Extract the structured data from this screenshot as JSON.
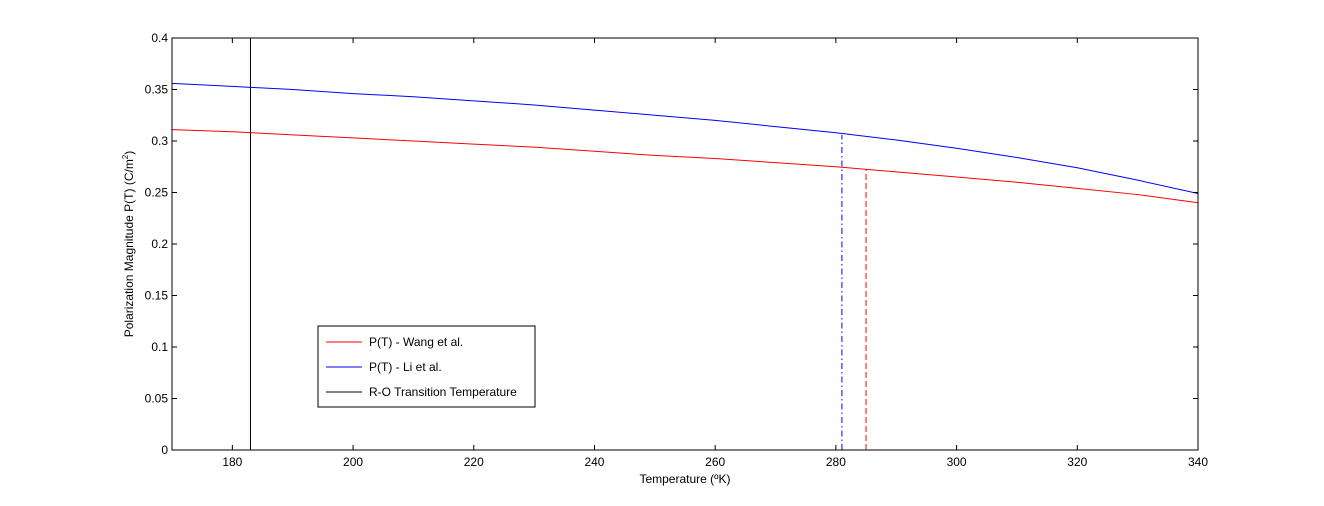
{
  "chart_data": {
    "type": "line",
    "title": "",
    "xlabel": "Temperature (ºK)",
    "ylabel": "Polarization Magnitude P(T)  (C/m²)",
    "ylabel_main": "Polarization Magnitude P(T)  (C/m",
    "ylabel_sup": "2",
    "ylabel_tail": ")",
    "xlim": [
      170,
      340
    ],
    "ylim": [
      0,
      0.4
    ],
    "xticks": [
      180,
      200,
      220,
      240,
      260,
      280,
      300,
      320,
      340
    ],
    "yticks": [
      0,
      0.05,
      0.1,
      0.15,
      0.2,
      0.25,
      0.3,
      0.35,
      0.4
    ],
    "xtick_labels": [
      "180",
      "200",
      "220",
      "240",
      "260",
      "280",
      "300",
      "320",
      "340"
    ],
    "ytick_labels": [
      "0",
      "0.05",
      "0.1",
      "0.15",
      "0.2",
      "0.25",
      "0.3",
      "0.35",
      "0.4"
    ],
    "grid": false,
    "legend_position": "lower-left",
    "series": [
      {
        "name": "P(T) - Wang et al.",
        "color": "#ff0000",
        "style": "solid",
        "x": [
          170,
          180,
          190,
          200,
          210,
          220,
          230,
          240,
          250,
          260,
          270,
          280,
          290,
          300,
          310,
          320,
          330,
          340
        ],
        "y": [
          0.311,
          0.309,
          0.306,
          0.303,
          0.3,
          0.297,
          0.294,
          0.29,
          0.286,
          0.283,
          0.279,
          0.275,
          0.27,
          0.265,
          0.26,
          0.254,
          0.248,
          0.24
        ]
      },
      {
        "name": "P(T) - Li et al.",
        "color": "#0000ff",
        "style": "solid",
        "x": [
          170,
          180,
          190,
          200,
          210,
          220,
          230,
          240,
          250,
          260,
          270,
          280,
          290,
          300,
          310,
          320,
          330,
          340
        ],
        "y": [
          0.356,
          0.353,
          0.35,
          0.346,
          0.343,
          0.339,
          0.335,
          0.33,
          0.325,
          0.32,
          0.314,
          0.308,
          0.301,
          0.293,
          0.284,
          0.274,
          0.262,
          0.249
        ]
      },
      {
        "name": "R-O Transition Temperature",
        "color": "#000000",
        "style": "solid",
        "x": [
          183,
          183
        ],
        "y": [
          0,
          0.4
        ]
      }
    ],
    "markers": [
      {
        "color": "#0000ff",
        "style": "dashdot",
        "x": 281,
        "y": [
          0,
          0.306
        ]
      },
      {
        "color": "#ff0000",
        "style": "dashed",
        "x": 285,
        "y": [
          0,
          0.272
        ]
      }
    ]
  }
}
